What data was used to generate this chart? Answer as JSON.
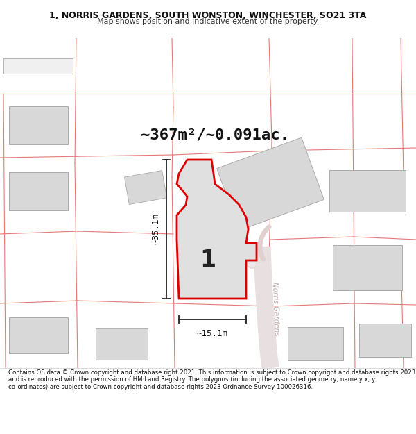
{
  "title_line1": "1, NORRIS GARDENS, SOUTH WONSTON, WINCHESTER, SO21 3TA",
  "title_line2": "Map shows position and indicative extent of the property.",
  "area_text": "~367m²/~0.091ac.",
  "dim_width": "~15.1m",
  "dim_height": "~35.1m",
  "plot_label": "1",
  "road_label": "Norris Gardens",
  "footer_text": "Contains OS data © Crown copyright and database right 2021. This information is subject to Crown copyright and database rights 2023 and is reproduced with the permission of HM Land Registry. The polygons (including the associated geometry, namely x, y co-ordinates) are subject to Crown copyright and database rights 2023 Ordnance Survey 100026316.",
  "map_bg": "#ffffff",
  "plot_fill": "#e0e0e0",
  "plot_edge": "#dd0000",
  "neighbor_fill": "#d8d8d8",
  "neighbor_edge": "#aaaaaa",
  "parcel_line_color": "#e87878",
  "dim_line_color": "#222222",
  "road_fill": "#eeeeee",
  "road_outline": "#ddcccc"
}
